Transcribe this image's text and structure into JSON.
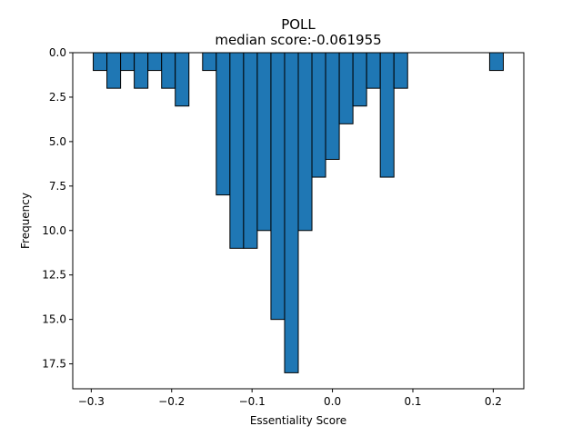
{
  "chart_data": {
    "type": "bar",
    "title": "POLL",
    "subtitle": "median score:-0.061955",
    "xlabel": "Essentiality Score",
    "ylabel": "Frequency",
    "xlim": [
      -0.323,
      0.238
    ],
    "ylim": [
      18.9,
      0
    ],
    "y_inverted": true,
    "bar_width": 0.017,
    "bar_color": "#1f77b4",
    "edge_color": "#000000",
    "xticks": [
      -0.3,
      -0.2,
      -0.1,
      0.0,
      0.1,
      0.2
    ],
    "xtick_labels": [
      "−0.3",
      "−0.2",
      "−0.1",
      "0.0",
      "0.1",
      "0.2"
    ],
    "yticks": [
      0,
      2.5,
      5,
      7.5,
      10,
      12.5,
      15,
      17.5
    ],
    "ytick_labels": [
      "0.0",
      "2.5",
      "5.0",
      "7.5",
      "10.0",
      "12.5",
      "15.0",
      "17.5"
    ],
    "grid": false,
    "bins": [
      {
        "x": -0.289,
        "value": 1
      },
      {
        "x": -0.272,
        "value": 2
      },
      {
        "x": -0.255,
        "value": 1
      },
      {
        "x": -0.238,
        "value": 2
      },
      {
        "x": -0.221,
        "value": 1
      },
      {
        "x": -0.204,
        "value": 2
      },
      {
        "x": -0.187,
        "value": 3
      },
      {
        "x": -0.153,
        "value": 1
      },
      {
        "x": -0.136,
        "value": 8
      },
      {
        "x": -0.119,
        "value": 11
      },
      {
        "x": -0.102,
        "value": 11
      },
      {
        "x": -0.085,
        "value": 10
      },
      {
        "x": -0.068,
        "value": 15
      },
      {
        "x": -0.051,
        "value": 18
      },
      {
        "x": -0.034,
        "value": 10
      },
      {
        "x": -0.017,
        "value": 7
      },
      {
        "x": 0.0,
        "value": 6
      },
      {
        "x": 0.017,
        "value": 4
      },
      {
        "x": 0.034,
        "value": 3
      },
      {
        "x": 0.051,
        "value": 2
      },
      {
        "x": 0.068,
        "value": 7
      },
      {
        "x": 0.085,
        "value": 2
      },
      {
        "x": 0.102,
        "value": 0
      },
      {
        "x": 0.119,
        "value": 0
      },
      {
        "x": 0.136,
        "value": 0
      },
      {
        "x": 0.153,
        "value": 0
      },
      {
        "x": 0.17,
        "value": 0
      },
      {
        "x": 0.187,
        "value": 0
      },
      {
        "x": 0.204,
        "value": 1
      }
    ]
  }
}
